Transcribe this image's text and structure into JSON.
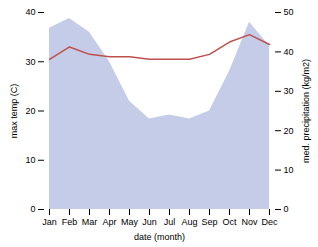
{
  "chart_data": {
    "type": "line",
    "categories": [
      "Jan",
      "Feb",
      "Mar",
      "Apr",
      "May",
      "Jun",
      "Jul",
      "Aug",
      "Sep",
      "Oct",
      "Nov",
      "Dec"
    ],
    "xlabel": "date (month)",
    "ylabel": "max temp (C)",
    "y2label": "med. precipitation (kg/m2)",
    "series": [
      {
        "type": "area",
        "axis": "y2",
        "color": "#c5cce8",
        "values": [
          46.0,
          48.5,
          45.0,
          37.5,
          27.5,
          23.0,
          24.0,
          23.0,
          25.0,
          35.0,
          47.5,
          41.5
        ]
      },
      {
        "type": "line",
        "color": "#c0504d",
        "values": [
          30.5,
          33.0,
          31.5,
          31.0,
          31.0,
          30.5,
          30.5,
          30.5,
          31.5,
          34.0,
          35.5,
          33.5
        ]
      }
    ],
    "ylim": [
      0,
      40
    ],
    "yticks": [
      0,
      10,
      20,
      30,
      40
    ],
    "y2lim": [
      0,
      50
    ],
    "y2ticks": [
      0,
      10,
      20,
      30,
      40,
      50
    ],
    "grid": false
  }
}
